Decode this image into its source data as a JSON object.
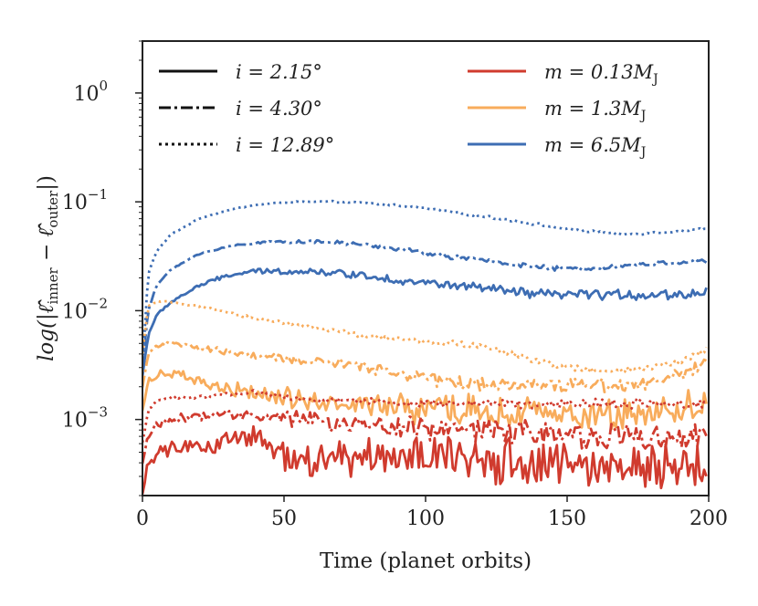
{
  "chart_data": {
    "type": "line",
    "xlabel": "Time (planet orbits)",
    "ylabel": "log(|ℓ̂inner − ℓ̂outer|)",
    "ylabel_parts": {
      "prefix": "log(|",
      "hat1": "ℓ̂",
      "sub1": "inner",
      "minus": " − ",
      "hat2": "ℓ̂",
      "sub2": "outer",
      "suffix": "|)"
    },
    "xlim": [
      0,
      200
    ],
    "ylim": [
      0.0002,
      3
    ],
    "yscale": "log",
    "x_ticks": [
      0,
      50,
      100,
      150,
      200
    ],
    "x_tick_labels": [
      "0",
      "50",
      "100",
      "150",
      "200"
    ],
    "y_ticks": [
      {
        "value": 1,
        "base": "10",
        "exp": "0"
      },
      {
        "value": 0.1,
        "base": "10",
        "exp": "−1"
      },
      {
        "value": 0.01,
        "base": "10",
        "exp": "−2"
      },
      {
        "value": 0.001,
        "base": "10",
        "exp": "−3"
      }
    ],
    "grid": false,
    "legend": {
      "placement": "top",
      "inclination_entries": [
        {
          "style": "solid",
          "label": "i = 2.15°"
        },
        {
          "style": "dashdot",
          "label": "i = 4.30°"
        },
        {
          "style": "dotted",
          "label": "i = 12.89°"
        }
      ],
      "mass_entries": [
        {
          "color": "#d03b2e",
          "label_prefix": "m = 0.13M",
          "label_sub": "J"
        },
        {
          "color": "#f8ac5c",
          "label_prefix": "m = 1.3M",
          "label_sub": "J"
        },
        {
          "color": "#3d6db3",
          "label_prefix": "m = 6.5M",
          "label_sub": "J"
        }
      ]
    },
    "colors": {
      "m_0_13": "#d03b2e",
      "m_1_3": "#f8ac5c",
      "m_6_5": "#3d6db3"
    },
    "series": [
      {
        "name": "m = 6.5MJ, i = 12.89°",
        "color": "#3d6db3",
        "style": "dotted",
        "x": [
          0,
          2,
          5,
          10,
          20,
          30,
          40,
          50,
          60,
          70,
          80,
          90,
          100,
          110,
          120,
          130,
          140,
          150,
          160,
          170,
          180,
          190,
          200
        ],
        "y": [
          0.003,
          0.022,
          0.035,
          0.05,
          0.07,
          0.084,
          0.094,
          0.099,
          0.1,
          0.1,
          0.097,
          0.093,
          0.087,
          0.08,
          0.074,
          0.068,
          0.062,
          0.056,
          0.053,
          0.05,
          0.052,
          0.054,
          0.057
        ],
        "noise": 0.02
      },
      {
        "name": "m = 6.5MJ, i = 4.30°",
        "color": "#3d6db3",
        "style": "dashdot",
        "x": [
          0,
          2,
          5,
          10,
          20,
          30,
          40,
          50,
          60,
          70,
          80,
          90,
          100,
          110,
          120,
          130,
          140,
          150,
          160,
          170,
          180,
          190,
          200
        ],
        "y": [
          0.003,
          0.01,
          0.017,
          0.024,
          0.033,
          0.039,
          0.042,
          0.043,
          0.043,
          0.042,
          0.04,
          0.037,
          0.034,
          0.031,
          0.029,
          0.027,
          0.025,
          0.024,
          0.025,
          0.026,
          0.027,
          0.028,
          0.029
        ],
        "noise": 0.04
      },
      {
        "name": "m = 6.5MJ, i = 2.15°",
        "color": "#3d6db3",
        "style": "solid",
        "x": [
          0,
          2,
          5,
          10,
          20,
          30,
          40,
          50,
          60,
          70,
          80,
          90,
          100,
          110,
          120,
          130,
          140,
          150,
          160,
          170,
          180,
          190,
          200
        ],
        "y": [
          0.0025,
          0.006,
          0.009,
          0.012,
          0.017,
          0.021,
          0.023,
          0.023,
          0.023,
          0.022,
          0.021,
          0.019,
          0.018,
          0.017,
          0.016,
          0.015,
          0.014,
          0.014,
          0.014,
          0.014,
          0.014,
          0.014,
          0.015
        ],
        "noise": 0.08
      },
      {
        "name": "m = 1.3MJ, i = 12.89°",
        "color": "#f8ac5c",
        "style": "dotted",
        "x": [
          0,
          2,
          5,
          10,
          20,
          30,
          40,
          50,
          60,
          70,
          80,
          90,
          100,
          110,
          120,
          130,
          140,
          150,
          160,
          170,
          180,
          190,
          200
        ],
        "y": [
          0.004,
          0.011,
          0.012,
          0.012,
          0.011,
          0.0095,
          0.0085,
          0.0078,
          0.007,
          0.0064,
          0.0058,
          0.0055,
          0.0052,
          0.005,
          0.0047,
          0.004,
          0.0035,
          0.003,
          0.0028,
          0.0028,
          0.003,
          0.0034,
          0.0045
        ],
        "noise": 0.05
      },
      {
        "name": "m = 1.3MJ, i = 4.30°",
        "color": "#f8ac5c",
        "style": "dashdot",
        "x": [
          0,
          2,
          5,
          10,
          20,
          30,
          40,
          50,
          60,
          70,
          80,
          90,
          100,
          110,
          120,
          130,
          140,
          150,
          160,
          170,
          180,
          190,
          200
        ],
        "y": [
          0.002,
          0.004,
          0.0048,
          0.005,
          0.0045,
          0.0042,
          0.0038,
          0.0036,
          0.0034,
          0.0033,
          0.003,
          0.0027,
          0.0024,
          0.0022,
          0.0021,
          0.0021,
          0.0021,
          0.0021,
          0.0021,
          0.0021,
          0.0022,
          0.0026,
          0.0032
        ],
        "noise": 0.12
      },
      {
        "name": "m = 1.3MJ, i = 2.15°",
        "color": "#f8ac5c",
        "style": "solid",
        "x": [
          0,
          2,
          5,
          10,
          20,
          30,
          40,
          50,
          60,
          70,
          80,
          90,
          100,
          110,
          120,
          130,
          140,
          150,
          160,
          170,
          180,
          190,
          200
        ],
        "y": [
          0.0012,
          0.0022,
          0.0027,
          0.0026,
          0.0022,
          0.0019,
          0.0017,
          0.0016,
          0.0015,
          0.0014,
          0.0013,
          0.0013,
          0.0012,
          0.0012,
          0.0012,
          0.0011,
          0.0011,
          0.0011,
          0.0011,
          0.0011,
          0.0012,
          0.0013,
          0.0014
        ],
        "noise": 0.28
      },
      {
        "name": "m = 0.13MJ, i = 12.89°",
        "color": "#d03b2e",
        "style": "dotted",
        "x": [
          0,
          2,
          5,
          10,
          20,
          30,
          40,
          50,
          60,
          70,
          80,
          90,
          100,
          110,
          120,
          130,
          140,
          150,
          160,
          170,
          180,
          190,
          200
        ],
        "y": [
          0.0006,
          0.0012,
          0.0015,
          0.0016,
          0.0016,
          0.0017,
          0.0018,
          0.0016,
          0.0015,
          0.0015,
          0.0015,
          0.0014,
          0.0014,
          0.0014,
          0.0014,
          0.0014,
          0.0014,
          0.0014,
          0.0014,
          0.0014,
          0.0014,
          0.0014,
          0.0014
        ],
        "noise": 0.07
      },
      {
        "name": "m = 0.13MJ, i = 4.30°",
        "color": "#d03b2e",
        "style": "dashdot",
        "x": [
          0,
          2,
          5,
          10,
          20,
          30,
          40,
          50,
          60,
          70,
          80,
          90,
          100,
          110,
          120,
          130,
          140,
          150,
          160,
          170,
          180,
          190,
          200
        ],
        "y": [
          0.0004,
          0.0007,
          0.0009,
          0.001,
          0.00105,
          0.0011,
          0.00115,
          0.001,
          0.001,
          0.0009,
          0.0009,
          0.00085,
          0.00085,
          0.0008,
          0.0008,
          0.0008,
          0.00075,
          0.00075,
          0.0007,
          0.0007,
          0.0007,
          0.0007,
          0.00075
        ],
        "noise": 0.22
      },
      {
        "name": "m = 0.13MJ, i = 2.15°",
        "color": "#d03b2e",
        "style": "solid",
        "x": [
          0,
          2,
          5,
          10,
          20,
          30,
          40,
          50,
          60,
          70,
          80,
          90,
          100,
          110,
          120,
          130,
          140,
          150,
          160,
          170,
          180,
          190,
          200
        ],
        "y": [
          0.0002,
          0.0004,
          0.0005,
          0.00055,
          0.00055,
          0.0006,
          0.0007,
          0.00045,
          0.0004,
          0.00045,
          0.00045,
          0.00045,
          0.00045,
          0.00045,
          0.0004,
          0.0004,
          0.0004,
          0.00038,
          0.00035,
          0.00035,
          0.00035,
          0.00035,
          0.00035
        ],
        "noise": 0.4
      }
    ]
  }
}
